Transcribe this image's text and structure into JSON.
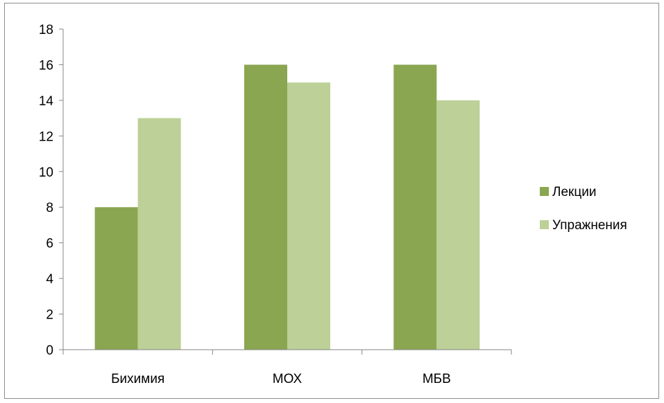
{
  "chart_data": {
    "type": "bar",
    "categories": [
      "Бихимия",
      "МОХ",
      "МБВ"
    ],
    "series": [
      {
        "name": "Лекции",
        "values": [
          8,
          16,
          16
        ],
        "color": "#8aa650"
      },
      {
        "name": "Упражнения",
        "values": [
          13,
          15,
          14
        ],
        "color": "#bcd097"
      }
    ],
    "ylim": [
      0,
      18
    ],
    "yticks": [
      "0",
      "2",
      "4",
      "6",
      "8",
      "10",
      "12",
      "14",
      "16",
      "18"
    ],
    "title": "",
    "xlabel": "",
    "ylabel": "",
    "grid": false,
    "legend_position": "right"
  }
}
